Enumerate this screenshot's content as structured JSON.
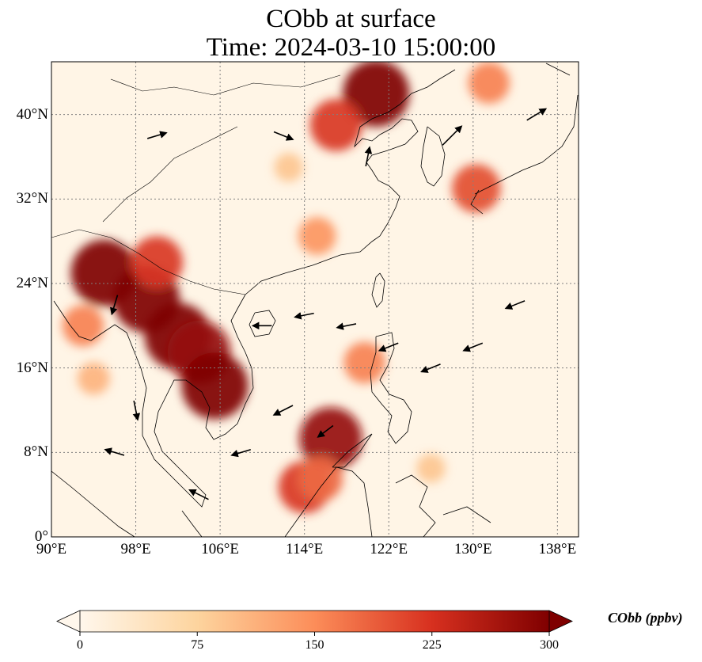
{
  "title": {
    "line1": "CObb at surface",
    "line2": "Time: 2024-03-10 15:00:00"
  },
  "map": {
    "extent": {
      "lon_min": 90,
      "lon_max": 140,
      "lat_min": 0,
      "lat_max": 45
    },
    "x_ticks": [
      "90°E",
      "98°E",
      "106°E",
      "114°E",
      "122°E",
      "130°E",
      "138°E"
    ],
    "x_tick_values": [
      90,
      98,
      106,
      114,
      122,
      130,
      138
    ],
    "y_ticks": [
      "0°",
      "8°N",
      "16°N",
      "24°N",
      "32°N",
      "40°N"
    ],
    "y_tick_values": [
      0,
      8,
      16,
      24,
      32,
      40
    ],
    "gridlines": true,
    "background_color": "#fff5e6",
    "coastline_color": "#000000"
  },
  "colorbar": {
    "label": "CObb (ppbv)",
    "ticks": [
      "0",
      "75",
      "150",
      "225",
      "300"
    ],
    "tick_values": [
      0,
      75,
      150,
      225,
      300
    ],
    "range": [
      0,
      300
    ],
    "extend": "both",
    "colormap": "OrRd",
    "colors": [
      "#fff7ec",
      "#fdd49e",
      "#fc8d59",
      "#d7301f",
      "#7f0000"
    ]
  },
  "plumes": [
    {
      "lon": 99,
      "lat": 22.5,
      "value": 300
    },
    {
      "lon": 95,
      "lat": 25,
      "value": 300
    },
    {
      "lon": 102,
      "lat": 19,
      "value": 300
    },
    {
      "lon": 104,
      "lat": 17.5,
      "value": 280
    },
    {
      "lon": 105.5,
      "lat": 14.3,
      "value": 300
    },
    {
      "lon": 100,
      "lat": 26,
      "value": 220
    },
    {
      "lon": 93,
      "lat": 20,
      "value": 160
    },
    {
      "lon": 94,
      "lat": 15,
      "value": 110
    },
    {
      "lon": 120.8,
      "lat": 42,
      "value": 300
    },
    {
      "lon": 117,
      "lat": 39,
      "value": 220
    },
    {
      "lon": 130.3,
      "lat": 33,
      "value": 200
    },
    {
      "lon": 116.5,
      "lat": 9.3,
      "value": 280
    },
    {
      "lon": 114,
      "lat": 4.7,
      "value": 220
    },
    {
      "lon": 115.5,
      "lat": 5.5,
      "value": 180
    },
    {
      "lon": 119.7,
      "lat": 16.5,
      "value": 160
    },
    {
      "lon": 115.2,
      "lat": 28.5,
      "value": 140
    },
    {
      "lon": 126,
      "lat": 6.5,
      "value": 90
    },
    {
      "lon": 112.5,
      "lat": 35,
      "value": 90
    },
    {
      "lon": 131.5,
      "lat": 43,
      "value": 160
    }
  ],
  "wind_vectors": [
    {
      "lon": 96,
      "lat": 22,
      "u": -0.3,
      "v": -1
    },
    {
      "lon": 98,
      "lat": 12,
      "u": 0.2,
      "v": -1
    },
    {
      "lon": 110,
      "lat": 20,
      "u": -1,
      "v": 0
    },
    {
      "lon": 114,
      "lat": 21,
      "u": -1,
      "v": -0.2
    },
    {
      "lon": 118,
      "lat": 20,
      "u": -1,
      "v": -0.2
    },
    {
      "lon": 122,
      "lat": 18,
      "u": -1,
      "v": -0.4
    },
    {
      "lon": 126,
      "lat": 16,
      "u": -1,
      "v": -0.4
    },
    {
      "lon": 130,
      "lat": 18,
      "u": -1,
      "v": -0.4
    },
    {
      "lon": 134,
      "lat": 22,
      "u": -1,
      "v": -0.4
    },
    {
      "lon": 112,
      "lat": 12,
      "u": -1,
      "v": -0.5
    },
    {
      "lon": 116,
      "lat": 10,
      "u": -0.8,
      "v": -0.6
    },
    {
      "lon": 108,
      "lat": 8,
      "u": -1,
      "v": -0.3
    },
    {
      "lon": 104,
      "lat": 4,
      "u": -1,
      "v": 0.5
    },
    {
      "lon": 96,
      "lat": 8,
      "u": -1,
      "v": 0.3
    },
    {
      "lon": 112,
      "lat": 38,
      "u": 1,
      "v": -0.4
    },
    {
      "lon": 100,
      "lat": 38,
      "u": 1,
      "v": 0.3
    },
    {
      "lon": 120,
      "lat": 36,
      "u": 0.2,
      "v": 1
    },
    {
      "lon": 128,
      "lat": 38,
      "u": 1,
      "v": 1
    },
    {
      "lon": 136,
      "lat": 40,
      "u": 1,
      "v": 0.6
    }
  ]
}
